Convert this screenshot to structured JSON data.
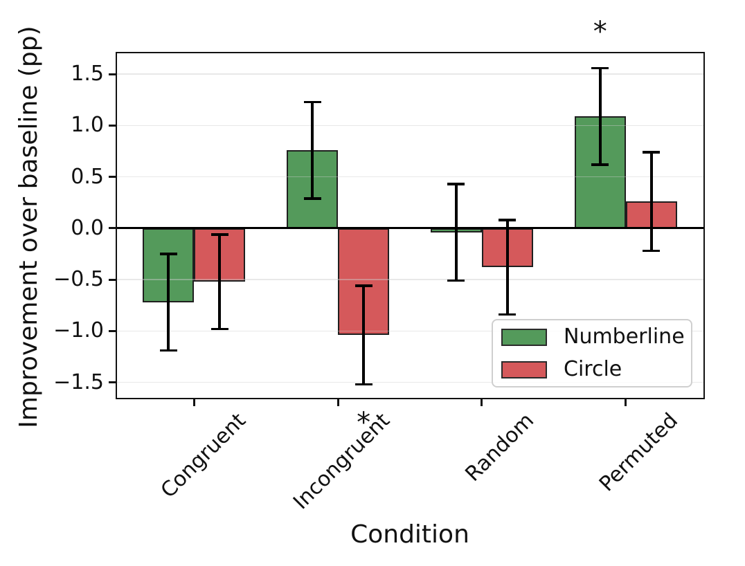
{
  "figure": {
    "background": "#ffffff",
    "text_color": "#111111",
    "grid_color": "#e6e6e6",
    "spine_color": "#111111"
  },
  "chart_data": {
    "type": "bar",
    "title": "",
    "xlabel": "Condition",
    "ylabel": "Improvement over baseline (pp)",
    "categories": [
      "Congruent",
      "Incongruent",
      "Random",
      "Permuted"
    ],
    "series": [
      {
        "name": "Numberline",
        "color": "#549a5b",
        "values": [
          -0.72,
          0.76,
          -0.04,
          1.09
        ],
        "errors": [
          0.47,
          0.47,
          0.47,
          0.47
        ]
      },
      {
        "name": "Circle",
        "color": "#d5595b",
        "values": [
          -0.52,
          -1.04,
          -0.38,
          0.26
        ],
        "errors": [
          0.46,
          0.48,
          0.46,
          0.48
        ]
      }
    ],
    "yticks": [
      1.5,
      1.0,
      0.5,
      0.0,
      -0.5,
      -1.0,
      -1.5
    ],
    "ytick_labels": [
      "1.5",
      "1.0",
      "0.5",
      "0.0",
      "−0.5",
      "−1.0",
      "−1.5"
    ],
    "ylim": [
      -1.65,
      1.71
    ],
    "grid": true,
    "zero_line": true,
    "error_bars": true,
    "legend": {
      "position": "lower right",
      "entries": [
        "Numberline",
        "Circle"
      ]
    },
    "annotations": [
      {
        "symbol": "*",
        "condition": "Incongruent",
        "series": "Circle",
        "placement": "below"
      },
      {
        "symbol": "*",
        "condition": "Permuted",
        "series": "Numberline",
        "placement": "above"
      }
    ]
  }
}
